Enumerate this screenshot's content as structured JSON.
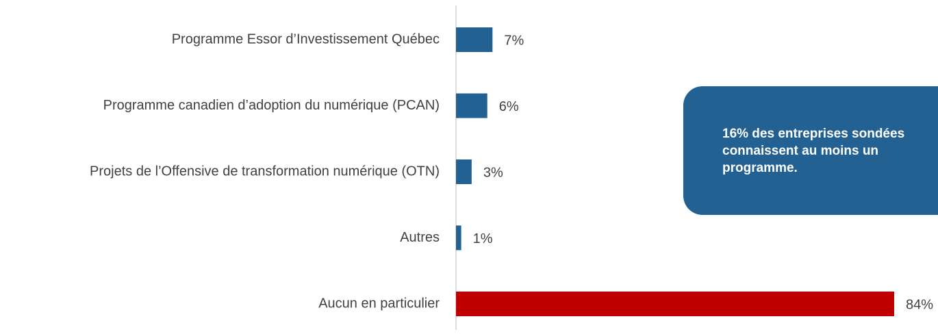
{
  "chart_data": {
    "type": "hbar",
    "categories": [
      "Programme Essor d’Investissement Québec",
      "Programme canadien d’adoption du numérique (PCAN)",
      "Projets de l’Offensive de transformation numérique (OTN)",
      "Autres",
      "Aucun en particulier"
    ],
    "values": [
      7,
      6,
      3,
      1,
      84
    ],
    "value_labels": [
      "7%",
      "6%",
      "3%",
      "1%",
      "84%"
    ],
    "colors": [
      "#236192",
      "#236192",
      "#236192",
      "#236192",
      "#c00000"
    ],
    "annotation": "16% des entreprises sondées connaissent au moins un programme."
  }
}
